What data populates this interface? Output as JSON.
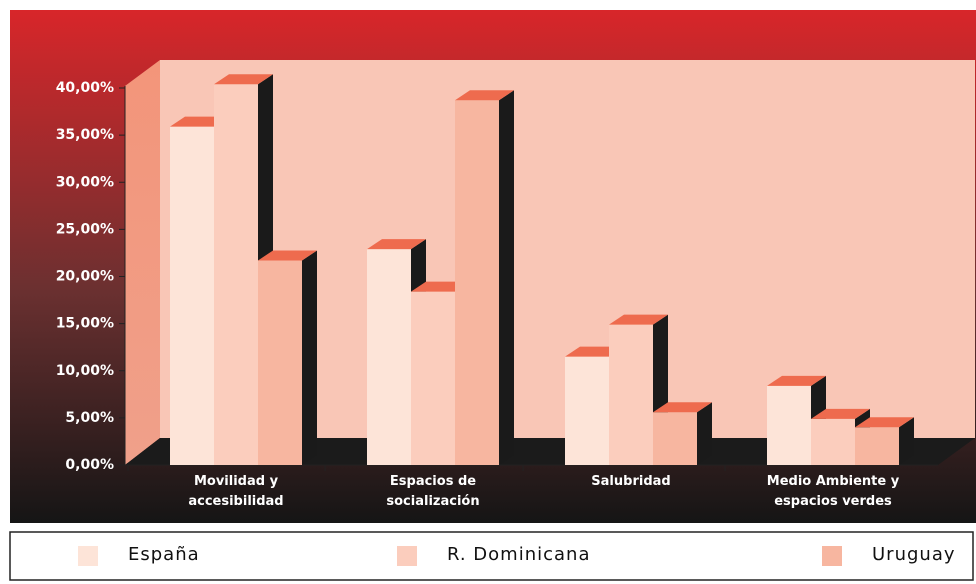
{
  "chart_data": {
    "type": "bar3d",
    "categories": [
      "Movilidad y\naccesibilidad",
      "Espacios de\nsocialización",
      "Salubridad",
      "Medio Ambiente y\nespacios verdes"
    ],
    "series": [
      {
        "name": "España",
        "color": "#fde4d8",
        "values": [
          35.9,
          22.9,
          11.5,
          8.4
        ]
      },
      {
        "name": "R. Dominicana",
        "color": "#fbcdbd",
        "values": [
          40.4,
          18.4,
          14.9,
          4.9
        ]
      },
      {
        "name": "Uruguay",
        "color": "#f7b6a0",
        "values": [
          21.7,
          38.7,
          5.6,
          4.0
        ]
      }
    ],
    "ylim": [
      0,
      40
    ],
    "yticks": [
      {
        "value": 0,
        "label": "0,00%"
      },
      {
        "value": 5,
        "label": "5,00%"
      },
      {
        "value": 10,
        "label": "10,00%"
      },
      {
        "value": 15,
        "label": "15,00%"
      },
      {
        "value": 20,
        "label": "20,00%"
      },
      {
        "value": 25,
        "label": "25,00%"
      },
      {
        "value": 30,
        "label": "30,00%"
      },
      {
        "value": 35,
        "label": "35,00%"
      },
      {
        "value": 40,
        "label": "40,00%"
      }
    ]
  }
}
